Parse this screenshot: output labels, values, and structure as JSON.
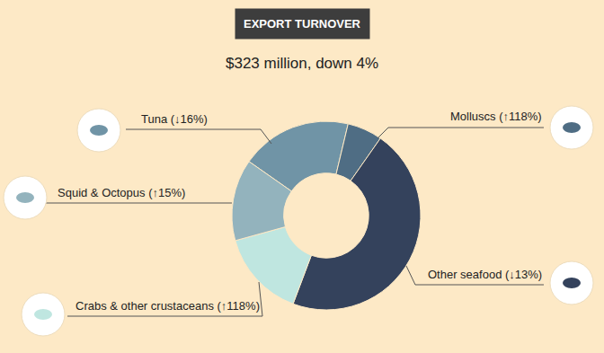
{
  "chart_data": {
    "type": "donut",
    "title": "EXPORT TURNOVER",
    "subtitle": "$323 million, down 4%",
    "categories": [
      "Tuna (↓16%)",
      "Molluscs (↑118%)",
      "Other seafood (↓13%)",
      "Crabs & other crustaceans (↑118%)",
      "Squid & Octopus (↑15%)"
    ],
    "values": [
      19,
      6,
      46,
      15,
      14
    ],
    "colors": [
      "#7094a6",
      "#4f6d84",
      "#34425c",
      "#bfe6e0",
      "#93b3bd"
    ]
  }
}
